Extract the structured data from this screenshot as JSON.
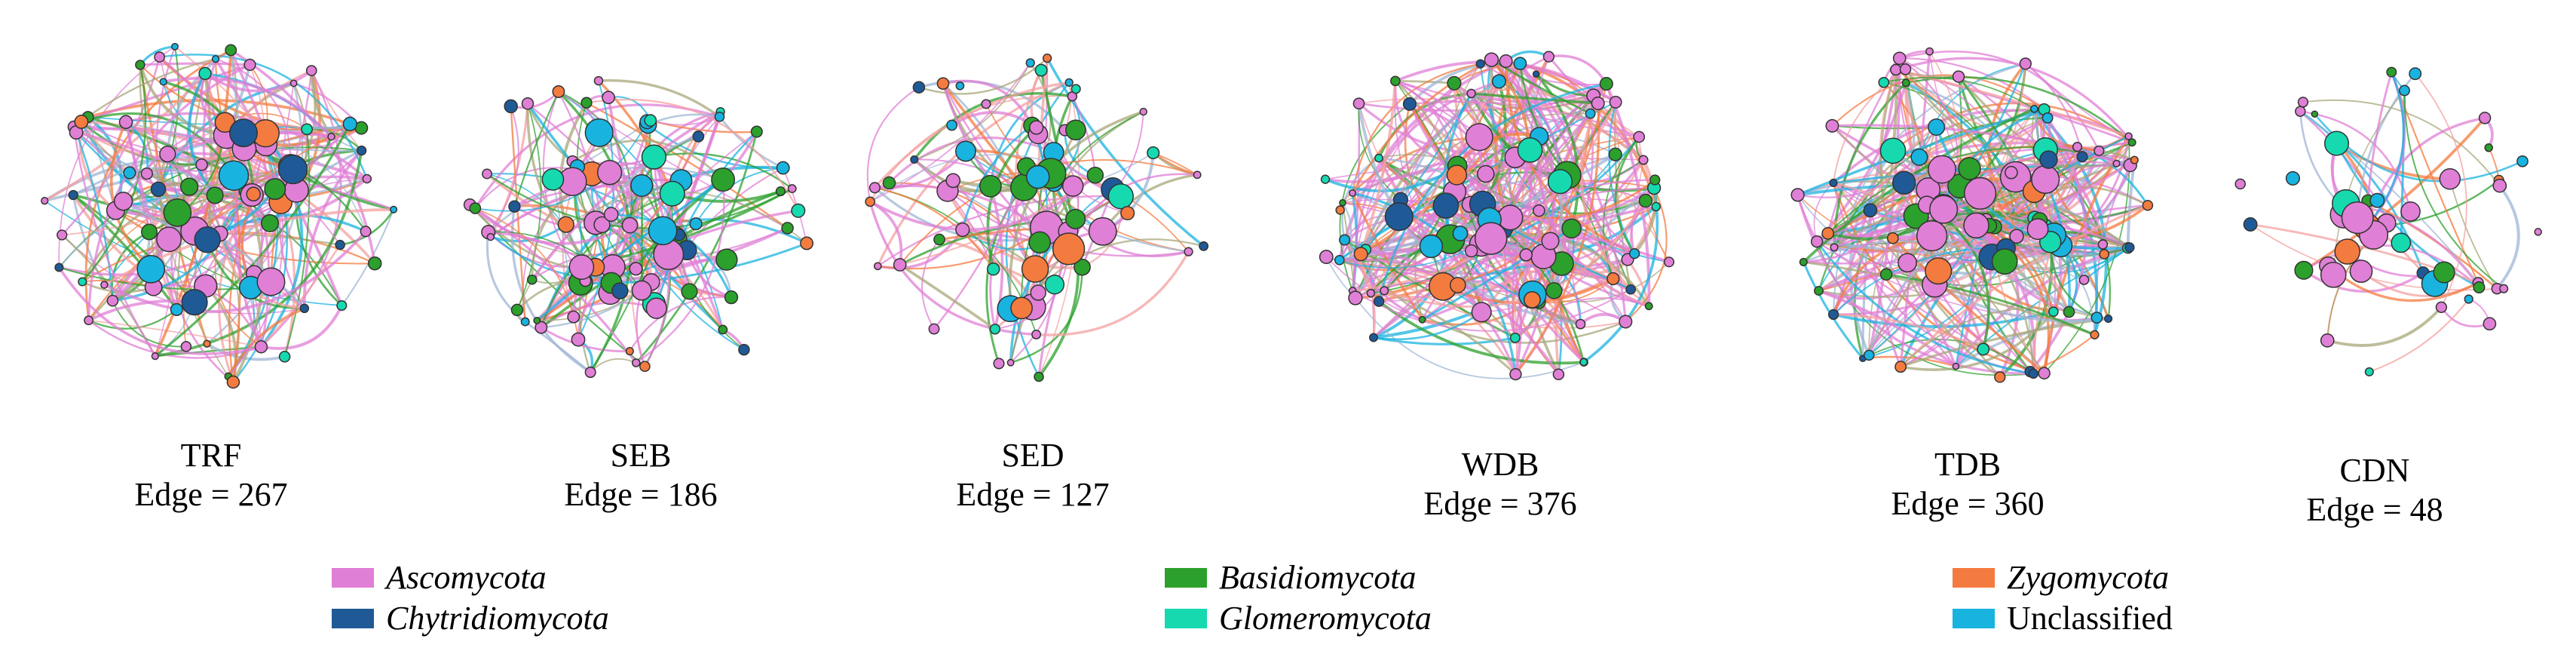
{
  "panels": [
    {
      "name": "TRF",
      "edge_label": "Edge = 267",
      "edges": 267,
      "nodes": 82,
      "seed": 11
    },
    {
      "name": "SEB",
      "edge_label": "Edge = 186",
      "edges": 186,
      "nodes": 78,
      "seed": 23
    },
    {
      "name": "SED",
      "edge_label": "Edge = 127",
      "edges": 127,
      "nodes": 66,
      "seed": 37
    },
    {
      "name": "WDB",
      "edge_label": "Edge = 376",
      "edges": 376,
      "nodes": 92,
      "seed": 51
    },
    {
      "name": "TDB",
      "edge_label": "Edge = 360",
      "edges": 360,
      "nodes": 90,
      "seed": 67
    },
    {
      "name": "CDN",
      "edge_label": "Edge = 48",
      "edges": 48,
      "nodes": 44,
      "seed": 83
    }
  ],
  "legend": [
    {
      "label": "Ascomycota",
      "color": "#e07fd6",
      "italic": true
    },
    {
      "label": "Basidiomycota",
      "color": "#2ca02c",
      "italic": true
    },
    {
      "label": "Zygomycota",
      "color": "#f47b3f",
      "italic": true
    },
    {
      "label": "Chytridiomycota",
      "color": "#1f5a96",
      "italic": true
    },
    {
      "label": "Glomeromycota",
      "color": "#16d9b0",
      "italic": true
    },
    {
      "label": "Unclassified",
      "color": "#19b3e0",
      "italic": false
    }
  ]
}
